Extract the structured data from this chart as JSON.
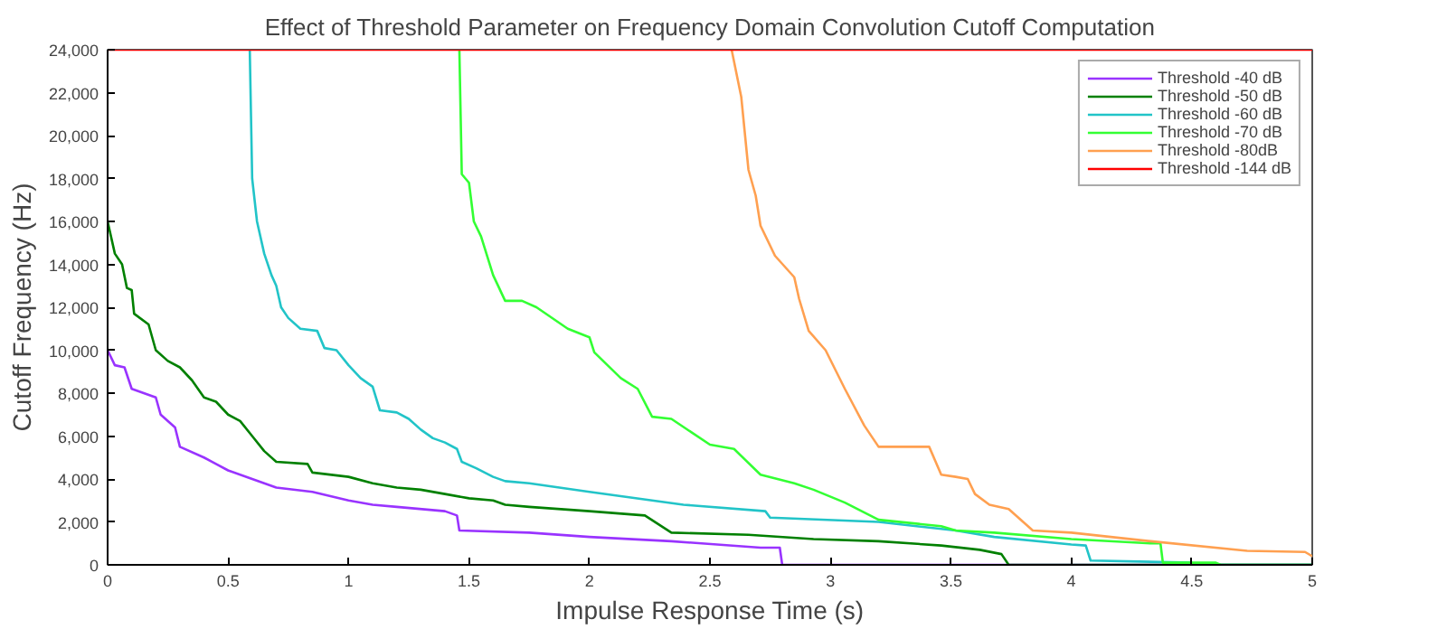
{
  "chart_data": {
    "type": "line",
    "title": "Effect of Threshold Parameter on Frequency Domain Convolution Cutoff Computation",
    "xlabel": "Impulse Response Time (s)",
    "ylabel": "Cutoff Frequency (Hz)",
    "xlim": [
      0,
      5
    ],
    "xticks": [
      0,
      0.5,
      1,
      1.5,
      2,
      2.5,
      3,
      3.5,
      4,
      4.5,
      5
    ],
    "ylim": [
      0,
      24000
    ],
    "yticks": [
      0,
      {
        "value": 2000,
        "label": "2,000"
      },
      {
        "value": 4000,
        "label": "4,000"
      },
      {
        "value": 6000,
        "label": "6,000"
      },
      {
        "value": 8000,
        "label": "8,000"
      },
      {
        "value": 10000,
        "label": "10,000"
      },
      {
        "value": 12000,
        "label": "12,000"
      },
      {
        "value": 14000,
        "label": "14,000"
      },
      {
        "value": 16000,
        "label": "16,000"
      },
      {
        "value": 18000,
        "label": "18,000"
      },
      {
        "value": 20000,
        "label": "20,000"
      },
      {
        "value": 22000,
        "label": "22,000"
      },
      {
        "value": 24000,
        "label": "24,000"
      }
    ],
    "grid": false,
    "legend": "top right",
    "line_style": "solid",
    "series": [
      {
        "name": "Threshold -40 dB",
        "color": "#9933ff",
        "x": [
          0,
          0.03,
          0.07,
          0.1,
          0.2,
          0.22,
          0.28,
          0.3,
          0.4,
          0.45,
          0.5,
          0.6,
          0.7,
          0.85,
          1.0,
          1.1,
          1.2,
          1.4,
          1.45,
          1.46,
          1.75,
          2.0,
          2.34,
          2.71,
          2.79,
          2.8,
          5
        ],
        "values": [
          10000,
          9300,
          9200,
          8200,
          7800,
          7000,
          6400,
          5500,
          5000,
          4700,
          4400,
          4000,
          3600,
          3400,
          3000,
          2800,
          2700,
          2500,
          2300,
          1600,
          1500,
          1300,
          1100,
          800,
          800,
          0,
          0
        ]
      },
      {
        "name": "Threshold -50 dB",
        "color": "#008000",
        "x": [
          0,
          0.03,
          0.06,
          0.08,
          0.1,
          0.11,
          0.17,
          0.2,
          0.25,
          0.3,
          0.35,
          0.4,
          0.45,
          0.5,
          0.55,
          0.6,
          0.65,
          0.7,
          0.83,
          0.85,
          1.0,
          1.1,
          1.2,
          1.3,
          1.4,
          1.5,
          1.6,
          1.65,
          1.75,
          2.0,
          2.23,
          2.34,
          2.66,
          2.93,
          3.2,
          3.46,
          3.62,
          3.71,
          3.74,
          5
        ],
        "values": [
          16000,
          14500,
          14000,
          12900,
          12800,
          11700,
          11200,
          10000,
          9500,
          9200,
          8600,
          7800,
          7600,
          7000,
          6700,
          6000,
          5300,
          4800,
          4700,
          4300,
          4100,
          3800,
          3600,
          3500,
          3300,
          3100,
          3000,
          2800,
          2700,
          2500,
          2300,
          1500,
          1400,
          1200,
          1100,
          900,
          700,
          500,
          0,
          0
        ]
      },
      {
        "name": "Threshold -60 dB",
        "color": "#22c4c8",
        "x": [
          0.59,
          0.6,
          0.62,
          0.65,
          0.68,
          0.7,
          0.72,
          0.75,
          0.8,
          0.87,
          0.9,
          0.95,
          1.0,
          1.05,
          1.1,
          1.13,
          1.2,
          1.25,
          1.3,
          1.35,
          1.4,
          1.45,
          1.47,
          1.53,
          1.6,
          1.65,
          1.75,
          2.0,
          2.39,
          2.73,
          2.75,
          3.2,
          3.52,
          3.68,
          4.0,
          4.06,
          4.08,
          4.5,
          4.52,
          5
        ],
        "values": [
          24000,
          18000,
          16000,
          14500,
          13500,
          13000,
          12000,
          11500,
          11000,
          10900,
          10100,
          10000,
          9300,
          8700,
          8300,
          7200,
          7100,
          6800,
          6300,
          5900,
          5700,
          5400,
          4800,
          4500,
          4100,
          3900,
          3800,
          3400,
          2800,
          2500,
          2200,
          2000,
          1600,
          1300,
          950,
          900,
          200,
          100,
          0,
          0
        ]
      },
      {
        "name": "Threshold -70 dB",
        "color": "#33ff33",
        "x": [
          1.46,
          1.47,
          1.5,
          1.52,
          1.55,
          1.6,
          1.65,
          1.72,
          1.78,
          1.91,
          2.0,
          2.02,
          2.13,
          2.2,
          2.26,
          2.34,
          2.5,
          2.6,
          2.71,
          2.85,
          2.93,
          3.06,
          3.2,
          3.46,
          3.52,
          3.68,
          4.0,
          4.33,
          4.37,
          4.38,
          4.6,
          4.62,
          5
        ],
        "values": [
          24000,
          18200,
          17800,
          16000,
          15300,
          13500,
          12300,
          12300,
          12000,
          11000,
          10600,
          9900,
          8700,
          8200,
          6900,
          6800,
          5600,
          5400,
          4200,
          3800,
          3500,
          2900,
          2100,
          1800,
          1600,
          1500,
          1200,
          1000,
          1000,
          100,
          100,
          0,
          0
        ]
      },
      {
        "name": "Threshold -80dB",
        "color": "#ffa050",
        "x": [
          2.59,
          2.63,
          2.66,
          2.69,
          2.71,
          2.77,
          2.85,
          2.87,
          2.91,
          2.98,
          3.06,
          3.14,
          3.2,
          3.41,
          3.46,
          3.52,
          3.57,
          3.6,
          3.66,
          3.74,
          3.84,
          4.0,
          4.33,
          4.73,
          4.97,
          5
        ],
        "values": [
          24000,
          21800,
          18400,
          17200,
          15800,
          14400,
          13400,
          12400,
          10900,
          10000,
          8200,
          6500,
          5500,
          5500,
          4200,
          4100,
          4000,
          3300,
          2800,
          2600,
          1600,
          1500,
          1100,
          650,
          600,
          400
        ]
      },
      {
        "name": "Threshold -144 dB",
        "color": "#ff0000",
        "x": [
          0,
          5
        ],
        "values": [
          24000,
          24000
        ]
      }
    ]
  }
}
